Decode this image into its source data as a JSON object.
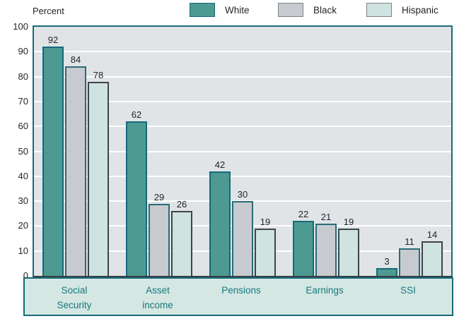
{
  "chart_data": {
    "type": "bar",
    "title": "",
    "ylabel": "Percent",
    "xlabel": "",
    "ylim": [
      0,
      100
    ],
    "yticks": [
      0,
      10,
      20,
      30,
      40,
      50,
      60,
      70,
      80,
      90,
      100
    ],
    "grid": true,
    "legend_position": "top",
    "categories": [
      "Social Security",
      "Asset income",
      "Pensions",
      "Earnings",
      "SSI"
    ],
    "category_lines": [
      [
        "Social",
        "Security"
      ],
      [
        "Asset",
        "income"
      ],
      [
        "Pensions"
      ],
      [
        "Earnings"
      ],
      [
        "SSI"
      ]
    ],
    "series": [
      {
        "name": "White",
        "values": [
          92,
          62,
          42,
          22,
          3
        ],
        "fill": "#4d9a92",
        "border": "#17697a",
        "legend_border": "#17697a"
      },
      {
        "name": "Black",
        "values": [
          84,
          29,
          30,
          21,
          11
        ],
        "fill": "#c7cbcf",
        "border": "#2a6b78",
        "legend_border": "#7b8389"
      },
      {
        "name": "Hispanic",
        "values": [
          78,
          26,
          19,
          19,
          14
        ],
        "fill": "#cfe3e0",
        "border": "#3e4449",
        "legend_border": "#7b8389"
      }
    ]
  },
  "colors": {
    "plot_background": "#e0e4e7",
    "gridline": "#ffffff",
    "plot_border": "#1a6b78",
    "baseline": "#3a4044",
    "category_box_background": "#d4e7e3",
    "category_box_border": "#17697a",
    "category_text": "#17787d",
    "axis_text": "#1f2326"
  },
  "layout_values": {
    "legend_item_lefts": [
      268,
      393,
      518
    ]
  }
}
